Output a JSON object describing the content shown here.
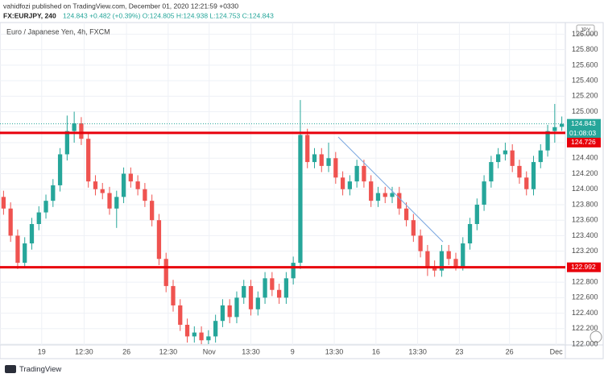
{
  "author_line": "vahidfozi published on TradingView.com, December 01, 2020 12:21:59 +0330",
  "symbol": "FX:EURJPY, 240",
  "quote": "124.843 +0.482 (+0.39%) O:124.805 H:124.938 L:124.753 C:124.843",
  "logo": "TradingView",
  "chart_data": {
    "type": "candlestick",
    "title": "Euro / Japanese Yen, 4h, FXCM",
    "currency": "JPY",
    "countdown": "01:08:03",
    "up_color": "#26a69a",
    "down_color": "#ef5350",
    "open": [
      123.9,
      123.75,
      123.4,
      123.05,
      123.3,
      123.55,
      123.7,
      123.85,
      124.05,
      124.45,
      124.75,
      124.85,
      124.65,
      124.1,
      124.0,
      123.95,
      123.75,
      123.9,
      124.2,
      124.1,
      124.0,
      123.85,
      123.6,
      123.1,
      122.75,
      122.5,
      122.25,
      122.1,
      122.15,
      122.05,
      122.1,
      122.3,
      122.5,
      122.35,
      122.6,
      122.75,
      122.45,
      122.6,
      122.85,
      122.7,
      122.6,
      122.85,
      123.05,
      124.7,
      124.35,
      124.45,
      124.3,
      124.4,
      124.15,
      124.0,
      124.1,
      124.3,
      124.1,
      123.85,
      123.95,
      123.9,
      123.95,
      123.75,
      123.6,
      123.4,
      123.2,
      123.0,
      122.95,
      123.2,
      123.1,
      123.0,
      123.3,
      123.55,
      123.8,
      124.1,
      124.35,
      124.45,
      124.5,
      124.3,
      124.15,
      124.0,
      124.35,
      124.5,
      124.75,
      124.805
    ],
    "high": [
      123.98,
      123.83,
      123.48,
      123.38,
      123.63,
      123.78,
      123.93,
      124.13,
      124.53,
      124.95,
      125.0,
      124.93,
      124.73,
      124.18,
      124.08,
      124.03,
      123.98,
      124.28,
      124.28,
      124.18,
      124.08,
      123.93,
      123.68,
      123.18,
      122.83,
      122.58,
      122.33,
      122.23,
      122.23,
      122.18,
      122.38,
      122.58,
      122.58,
      122.68,
      122.83,
      122.83,
      122.68,
      122.93,
      122.93,
      122.78,
      122.93,
      123.13,
      125.15,
      124.78,
      124.53,
      124.53,
      124.6,
      124.48,
      124.23,
      124.18,
      124.38,
      124.38,
      124.18,
      124.03,
      124.03,
      124.03,
      124.03,
      123.83,
      123.68,
      123.48,
      123.28,
      123.08,
      123.28,
      123.28,
      123.18,
      123.38,
      123.63,
      123.88,
      124.18,
      124.43,
      124.53,
      124.6,
      124.58,
      124.38,
      124.23,
      124.43,
      124.58,
      124.83,
      125.1,
      124.938
    ],
    "low": [
      123.67,
      123.32,
      122.97,
      122.98,
      123.22,
      123.47,
      123.62,
      123.77,
      123.97,
      124.37,
      124.6,
      124.57,
      124.02,
      123.92,
      123.87,
      123.67,
      123.5,
      123.82,
      124.02,
      123.92,
      123.77,
      123.52,
      123.02,
      122.67,
      122.42,
      122.17,
      122.02,
      122.02,
      122.0,
      122.0,
      122.02,
      122.22,
      122.27,
      122.27,
      122.52,
      122.37,
      122.37,
      122.52,
      122.62,
      122.52,
      122.52,
      122.77,
      122.97,
      124.27,
      124.27,
      124.22,
      124.22,
      124.07,
      123.92,
      123.92,
      124.02,
      124.02,
      123.77,
      123.77,
      123.82,
      123.82,
      123.67,
      123.52,
      123.32,
      123.12,
      122.88,
      122.87,
      122.87,
      123.02,
      122.95,
      122.95,
      123.22,
      123.47,
      123.72,
      124.02,
      124.27,
      124.37,
      124.22,
      124.07,
      123.92,
      123.92,
      124.27,
      124.42,
      124.6,
      124.753
    ],
    "close": [
      123.75,
      123.4,
      123.05,
      123.3,
      123.55,
      123.7,
      123.85,
      124.05,
      124.45,
      124.75,
      124.85,
      124.65,
      124.1,
      124.0,
      123.95,
      123.75,
      123.9,
      124.2,
      124.1,
      124.0,
      123.85,
      123.6,
      123.1,
      122.75,
      122.5,
      122.25,
      122.1,
      122.15,
      122.05,
      122.1,
      122.3,
      122.5,
      122.35,
      122.6,
      122.75,
      122.45,
      122.6,
      122.85,
      122.7,
      122.6,
      122.85,
      123.05,
      124.7,
      124.35,
      124.45,
      124.3,
      124.4,
      124.15,
      124.0,
      124.1,
      124.3,
      124.1,
      123.85,
      123.95,
      123.9,
      123.95,
      123.75,
      123.6,
      123.4,
      123.2,
      123.0,
      122.95,
      123.2,
      123.1,
      123.0,
      123.3,
      123.55,
      123.8,
      124.1,
      124.35,
      124.45,
      124.5,
      124.3,
      124.15,
      124.0,
      124.35,
      124.5,
      124.75,
      124.8,
      124.843
    ],
    "levels": [
      {
        "value": 124.726,
        "color": "#e8000b"
      },
      {
        "value": 122.992,
        "color": "#e8000b"
      }
    ],
    "xlim": [
      -0.5,
      79.5
    ],
    "xticks": [
      {
        "value": 5.4,
        "label": "19"
      },
      {
        "value": 11.4,
        "label": "12:30"
      },
      {
        "value": 17.4,
        "label": "26"
      },
      {
        "value": 23.3,
        "label": "12:30"
      },
      {
        "value": 29.1,
        "label": "Nov"
      },
      {
        "value": 35,
        "label": "13:30"
      },
      {
        "value": 40.9,
        "label": "9"
      },
      {
        "value": 46.8,
        "label": "13:30"
      },
      {
        "value": 52.7,
        "label": "16"
      },
      {
        "value": 58.6,
        "label": "13:30"
      },
      {
        "value": 64.5,
        "label": "23"
      },
      {
        "value": 71.6,
        "label": "26"
      },
      {
        "value": 78.2,
        "label": "Dec"
      }
    ],
    "ylim": [
      121.99,
      126.15
    ],
    "yticks": [
      {
        "value": 122.0,
        "label": "122.000"
      },
      {
        "value": 122.2,
        "label": "122.200"
      },
      {
        "value": 122.4,
        "label": "122.400"
      },
      {
        "value": 122.6,
        "label": "122.600"
      },
      {
        "value": 122.8,
        "label": "122.800"
      },
      {
        "value": 123.0,
        "label": "123.000"
      },
      {
        "value": 123.2,
        "label": "123.200"
      },
      {
        "value": 123.4,
        "label": "123.400"
      },
      {
        "value": 123.6,
        "label": "123.600"
      },
      {
        "value": 123.8,
        "label": "123.800"
      },
      {
        "value": 124.0,
        "label": "124.000"
      },
      {
        "value": 124.2,
        "label": "124.200"
      },
      {
        "value": 124.4,
        "label": "124.400"
      },
      {
        "value": 124.6,
        "label": "124.600"
      },
      {
        "value": 124.8,
        "label": "124.800"
      },
      {
        "value": 125.0,
        "label": "125.000"
      },
      {
        "value": 125.2,
        "label": "125.200"
      },
      {
        "value": 125.4,
        "label": "125.400"
      },
      {
        "value": 125.6,
        "label": "125.600"
      },
      {
        "value": 125.8,
        "label": "125.800"
      },
      {
        "value": 126.0,
        "label": "126.000"
      }
    ],
    "grid": true
  }
}
